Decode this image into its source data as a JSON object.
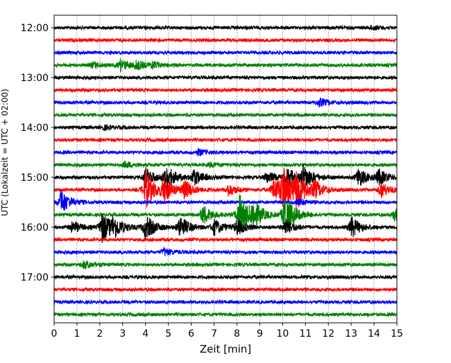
{
  "chart_data": {
    "type": "line",
    "title": "",
    "xlabel": "Zeit  [min]",
    "ylabel": "UTC (Lokalzeit = UTC + 02:00)",
    "xlim": [
      0,
      15
    ],
    "x_ticks": [
      "0",
      "1",
      "2",
      "3",
      "4",
      "5",
      "6",
      "7",
      "8",
      "9",
      "10",
      "11",
      "12",
      "13",
      "14",
      "15"
    ],
    "y_tick_labels": [
      "12:00",
      "13:00",
      "14:00",
      "15:00",
      "16:00",
      "17:00"
    ],
    "trace_interval_minutes": 15,
    "trace_color_cycle": [
      "#000000",
      "#ff0000",
      "#0000ff",
      "#008000"
    ],
    "grid": "vertical dotted lines at each minute",
    "traces": [
      {
        "start": "12:00",
        "color": "#000000",
        "events": [
          {
            "t": 13.9,
            "amp": 0.2
          }
        ]
      },
      {
        "start": "12:15",
        "color": "#ff0000",
        "events": []
      },
      {
        "start": "12:30",
        "color": "#0000ff",
        "events": []
      },
      {
        "start": "12:45",
        "color": "#008000",
        "events": [
          {
            "t": 1.7,
            "amp": 0.3
          },
          {
            "t": 2.9,
            "amp": 0.55
          },
          {
            "t": 3.6,
            "amp": 0.4
          },
          {
            "t": 4.3,
            "amp": 0.3
          }
        ]
      },
      {
        "start": "13:00",
        "color": "#000000",
        "events": []
      },
      {
        "start": "13:15",
        "color": "#ff0000",
        "events": []
      },
      {
        "start": "13:30",
        "color": "#0000ff",
        "events": [
          {
            "t": 11.6,
            "amp": 0.4
          }
        ]
      },
      {
        "start": "13:45",
        "color": "#008000",
        "events": []
      },
      {
        "start": "14:00",
        "color": "#000000",
        "events": [
          {
            "t": 2.2,
            "amp": 0.2
          }
        ]
      },
      {
        "start": "14:15",
        "color": "#ff0000",
        "events": []
      },
      {
        "start": "14:30",
        "color": "#0000ff",
        "events": [
          {
            "t": 6.3,
            "amp": 0.3
          }
        ]
      },
      {
        "start": "14:45",
        "color": "#008000",
        "events": [
          {
            "t": 3.1,
            "amp": 0.3
          },
          {
            "t": 6.8,
            "amp": 0.2
          }
        ]
      },
      {
        "start": "15:00",
        "color": "#000000",
        "events": [
          {
            "t": 4.0,
            "amp": 1.0
          },
          {
            "t": 4.9,
            "amp": 1.3
          },
          {
            "t": 6.1,
            "amp": 0.8
          },
          {
            "t": 9.3,
            "amp": 0.6
          },
          {
            "t": 10.2,
            "amp": 1.0
          },
          {
            "t": 10.9,
            "amp": 1.3
          },
          {
            "t": 13.3,
            "amp": 1.0
          },
          {
            "t": 14.2,
            "amp": 0.8
          }
        ]
      },
      {
        "start": "15:15",
        "color": "#ff0000",
        "events": [
          {
            "t": 4.0,
            "amp": 2.0
          },
          {
            "t": 4.8,
            "amp": 1.2
          },
          {
            "t": 5.7,
            "amp": 0.9
          },
          {
            "t": 7.6,
            "amp": 0.6
          },
          {
            "t": 9.6,
            "amp": 1.2
          },
          {
            "t": 10.0,
            "amp": 2.2
          },
          {
            "t": 10.6,
            "amp": 1.8
          },
          {
            "t": 11.4,
            "amp": 0.8
          },
          {
            "t": 14.3,
            "amp": 0.8
          }
        ]
      },
      {
        "start": "15:30",
        "color": "#0000ff",
        "events": [
          {
            "t": 0.3,
            "amp": 1.3
          },
          {
            "t": 10.7,
            "amp": 0.3
          }
        ]
      },
      {
        "start": "15:45",
        "color": "#008000",
        "events": [
          {
            "t": 6.5,
            "amp": 1.0
          },
          {
            "t": 8.1,
            "amp": 2.2
          },
          {
            "t": 8.7,
            "amp": 1.3
          },
          {
            "t": 10.1,
            "amp": 2.3
          },
          {
            "t": 14.9,
            "amp": 0.6
          }
        ]
      },
      {
        "start": "16:00",
        "color": "#000000",
        "events": [
          {
            "t": 0.8,
            "amp": 0.6
          },
          {
            "t": 2.1,
            "amp": 1.6
          },
          {
            "t": 2.6,
            "amp": 1.0
          },
          {
            "t": 4.0,
            "amp": 1.3
          },
          {
            "t": 5.5,
            "amp": 1.2
          },
          {
            "t": 7.0,
            "amp": 0.8
          },
          {
            "t": 8.0,
            "amp": 0.8
          },
          {
            "t": 10.1,
            "amp": 0.8
          },
          {
            "t": 13.0,
            "amp": 1.1
          }
        ]
      },
      {
        "start": "16:15",
        "color": "#ff0000",
        "events": []
      },
      {
        "start": "16:30",
        "color": "#0000ff",
        "events": [
          {
            "t": 4.8,
            "amp": 0.4
          }
        ]
      },
      {
        "start": "16:45",
        "color": "#008000",
        "events": [
          {
            "t": 1.3,
            "amp": 0.4
          }
        ]
      },
      {
        "start": "17:00",
        "color": "#000000",
        "events": []
      },
      {
        "start": "17:15",
        "color": "#ff0000",
        "events": []
      },
      {
        "start": "17:30",
        "color": "#0000ff",
        "events": []
      },
      {
        "start": "17:45",
        "color": "#008000",
        "events": []
      }
    ]
  }
}
